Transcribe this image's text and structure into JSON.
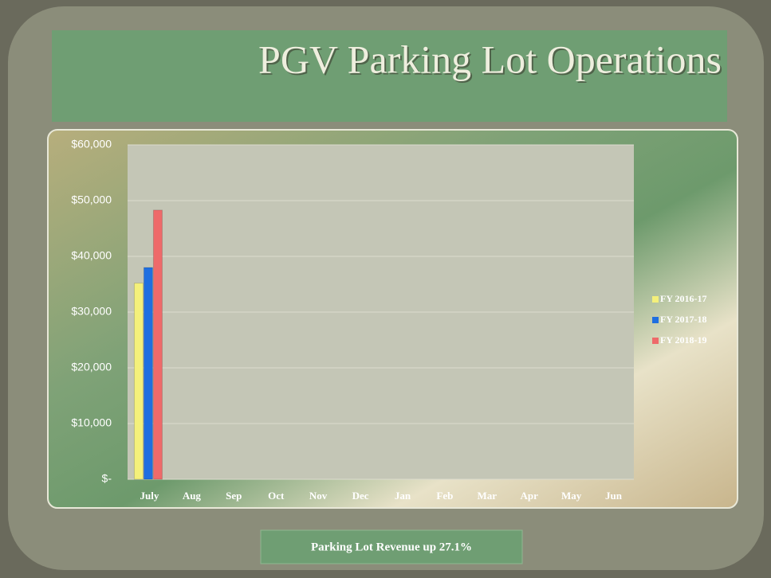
{
  "chart_data": {
    "type": "bar",
    "title": "PGV Parking Lot Operations",
    "caption": "Parking Lot  Revenue up 27.1%",
    "categories": [
      "July",
      "Aug",
      "Sep",
      "Oct",
      "Nov",
      "Dec",
      "Jan",
      "Feb",
      "Mar",
      "Apr",
      "May",
      "Jun"
    ],
    "series": [
      {
        "name": "FY 2016-17",
        "color": "#f4f07a",
        "values": [
          35200,
          null,
          null,
          null,
          null,
          null,
          null,
          null,
          null,
          null,
          null,
          null
        ]
      },
      {
        "name": "FY 2017-18",
        "color": "#1f6fe0",
        "values": [
          38000,
          null,
          null,
          null,
          null,
          null,
          null,
          null,
          null,
          null,
          null,
          null
        ]
      },
      {
        "name": "FY 2018-19",
        "color": "#ee6a6a",
        "values": [
          48300,
          null,
          null,
          null,
          null,
          null,
          null,
          null,
          null,
          null,
          null,
          null
        ]
      }
    ],
    "ylim": [
      0,
      60000
    ],
    "yticks": [
      {
        "value": 0,
        "label": "$-"
      },
      {
        "value": 10000,
        "label": "$10,000"
      },
      {
        "value": 20000,
        "label": "$20,000"
      },
      {
        "value": 30000,
        "label": "$30,000"
      },
      {
        "value": 40000,
        "label": "$40,000"
      },
      {
        "value": 50000,
        "label": "$50,000"
      },
      {
        "value": 60000,
        "label": "$60,000"
      }
    ],
    "grid": true,
    "legend": "right"
  }
}
